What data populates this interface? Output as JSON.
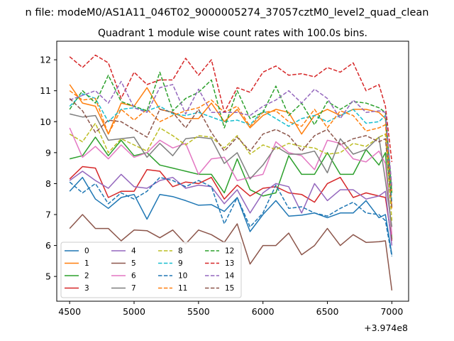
{
  "chart_data": {
    "type": "line",
    "suptitle": "n file: modeM0/AS1A11_046T02_9000005274_37057cztM0_level2_quad_clean",
    "title": "Quadrant 1 module wise count rates with 100.0s bins.",
    "xlabel": "",
    "ylabel": "",
    "x_offset_label": "+3.974e8",
    "xlim": [
      4400,
      7130
    ],
    "ylim": [
      4.2,
      12.6
    ],
    "x_ticks": [
      4500,
      5000,
      5500,
      6000,
      6500,
      7000
    ],
    "y_ticks": [
      5,
      6,
      7,
      8,
      9,
      10,
      11,
      12
    ],
    "grid": false,
    "legend": {
      "position": "lower-left",
      "columns": 4
    },
    "x": [
      4500,
      4600,
      4700,
      4800,
      4900,
      5000,
      5100,
      5200,
      5300,
      5400,
      5500,
      5600,
      5700,
      5800,
      5900,
      6000,
      6100,
      6200,
      6300,
      6400,
      6500,
      6600,
      6700,
      6800,
      6900,
      6950,
      7000
    ],
    "series": [
      {
        "name": "0",
        "color": "#1f77b4",
        "dash": "solid",
        "values": [
          7.75,
          8.2,
          7.5,
          7.2,
          7.55,
          7.65,
          6.85,
          7.65,
          7.58,
          7.45,
          7.3,
          7.32,
          7.1,
          7.55,
          6.45,
          7.0,
          7.45,
          6.95,
          6.98,
          7.05,
          6.9,
          7.05,
          7.05,
          7.45,
          6.9,
          7.0,
          5.7
        ]
      },
      {
        "name": "1",
        "color": "#ff7f0e",
        "dash": "solid",
        "values": [
          11.2,
          10.6,
          10.5,
          9.6,
          10.6,
          10.5,
          11.1,
          10.4,
          10.3,
          10.1,
          10.1,
          10.6,
          10.0,
          10.4,
          9.8,
          10.2,
          10.4,
          10.3,
          9.6,
          10.2,
          10.4,
          10.2,
          10.4,
          10.4,
          10.3,
          10.1,
          7.2
        ]
      },
      {
        "name": "2",
        "color": "#2ca02c",
        "dash": "solid",
        "values": [
          8.8,
          8.9,
          9.5,
          8.9,
          9.4,
          8.9,
          9.0,
          8.6,
          8.5,
          8.4,
          8.3,
          8.3,
          7.7,
          8.8,
          7.8,
          7.6,
          7.7,
          8.9,
          8.3,
          8.3,
          9.0,
          8.3,
          8.3,
          9.1,
          8.6,
          9.0,
          6.2
        ]
      },
      {
        "name": "3",
        "color": "#d62728",
        "dash": "solid",
        "values": [
          8.15,
          8.55,
          8.5,
          7.55,
          7.75,
          7.75,
          8.45,
          8.4,
          7.9,
          8.05,
          8.0,
          8.2,
          7.5,
          7.95,
          7.6,
          7.85,
          7.9,
          7.7,
          7.65,
          7.4,
          8.0,
          8.2,
          7.55,
          7.7,
          7.6,
          7.55,
          6.15
        ]
      },
      {
        "name": "4",
        "color": "#9467bd",
        "dash": "solid",
        "values": [
          8.1,
          8.4,
          8.1,
          7.85,
          8.3,
          7.9,
          7.85,
          8.1,
          8.2,
          7.85,
          7.95,
          7.9,
          7.35,
          7.8,
          7.05,
          7.7,
          8.0,
          7.9,
          7.05,
          8.0,
          7.45,
          7.8,
          7.8,
          7.5,
          7.6,
          7.75,
          6.0
        ]
      },
      {
        "name": "5",
        "color": "#8c564b",
        "dash": "solid",
        "values": [
          6.55,
          7.0,
          6.55,
          6.55,
          6.15,
          6.5,
          6.48,
          6.25,
          6.5,
          6.05,
          6.5,
          6.35,
          6.1,
          6.7,
          5.4,
          6.0,
          6.0,
          6.4,
          5.7,
          6.0,
          6.55,
          6.0,
          6.35,
          6.1,
          6.12,
          6.15,
          4.55
        ]
      },
      {
        "name": "6",
        "color": "#e377c2",
        "dash": "solid",
        "values": [
          9.8,
          8.85,
          9.2,
          8.8,
          9.25,
          8.85,
          9.0,
          9.4,
          9.15,
          9.3,
          8.3,
          8.8,
          8.85,
          8.1,
          8.2,
          8.3,
          9.35,
          9.0,
          8.9,
          8.45,
          9.4,
          9.3,
          8.8,
          8.7,
          9.05,
          8.65,
          6.35
        ]
      },
      {
        "name": "7",
        "color": "#7f7f7f",
        "dash": "solid",
        "values": [
          10.25,
          10.15,
          10.2,
          9.4,
          9.45,
          9.5,
          8.85,
          9.3,
          8.9,
          9.45,
          9.5,
          9.45,
          8.65,
          9.0,
          8.15,
          8.6,
          9.2,
          8.95,
          8.95,
          9.05,
          8.35,
          9.45,
          8.95,
          9.1,
          9.5,
          8.1,
          6.6
        ]
      },
      {
        "name": "8",
        "color": "#bcbd22",
        "dash": "dashed",
        "values": [
          9.6,
          9.35,
          9.95,
          9.0,
          9.45,
          9.25,
          9.05,
          9.8,
          9.55,
          9.25,
          9.55,
          9.5,
          9.15,
          9.55,
          8.95,
          9.25,
          9.1,
          9.3,
          9.2,
          9.15,
          8.95,
          9.0,
          9.3,
          9.2,
          9.5,
          9.6,
          6.8
        ]
      },
      {
        "name": "9",
        "color": "#17becf",
        "dash": "dashed",
        "values": [
          10.5,
          10.9,
          10.75,
          10.0,
          10.4,
          10.45,
          10.35,
          10.5,
          10.25,
          10.2,
          10.3,
          10.15,
          10.0,
          10.05,
          9.9,
          10.35,
          10.1,
          9.85,
          10.1,
          10.2,
          10.0,
          10.2,
          10.4,
          9.95,
          10.0,
          10.2,
          7.4
        ]
      },
      {
        "name": "10",
        "color": "#1f77b4",
        "dash": "dashed",
        "values": [
          8.05,
          7.7,
          8.0,
          7.35,
          7.7,
          7.5,
          7.75,
          8.2,
          8.1,
          7.9,
          8.1,
          7.9,
          6.7,
          7.55,
          6.6,
          7.05,
          7.95,
          7.2,
          7.25,
          7.05,
          6.95,
          7.2,
          7.4,
          7.05,
          7.0,
          6.8,
          5.65
        ]
      },
      {
        "name": "11",
        "color": "#ff7f0e",
        "dash": "dashed",
        "values": [
          11.0,
          10.7,
          10.75,
          9.6,
          10.4,
          10.05,
          10.4,
          10.0,
          10.2,
          10.35,
          10.45,
          10.7,
          10.3,
          10.5,
          9.85,
          10.3,
          10.35,
          10.0,
          9.85,
          10.4,
          9.8,
          10.35,
          10.2,
          9.7,
          9.8,
          9.9,
          7.75
        ]
      },
      {
        "name": "12",
        "color": "#2ca02c",
        "dash": "dashed",
        "values": [
          10.4,
          11.0,
          10.6,
          11.5,
          10.65,
          10.5,
          10.35,
          11.6,
          10.35,
          10.75,
          10.95,
          11.35,
          9.8,
          11.0,
          10.1,
          10.3,
          11.15,
          10.2,
          10.6,
          9.9,
          10.65,
          10.4,
          10.65,
          10.6,
          10.45,
          10.3,
          7.7
        ]
      },
      {
        "name": "13",
        "color": "#d62728",
        "dash": "dashed",
        "values": [
          12.1,
          11.75,
          12.15,
          11.9,
          10.75,
          11.6,
          11.2,
          11.35,
          11.35,
          12.05,
          11.5,
          12.0,
          10.3,
          11.1,
          10.95,
          11.6,
          11.8,
          11.5,
          11.55,
          11.45,
          11.75,
          11.6,
          11.9,
          11.0,
          11.2,
          10.5,
          8.7
        ]
      },
      {
        "name": "14",
        "color": "#9467bd",
        "dash": "dashed",
        "values": [
          10.7,
          10.85,
          11.0,
          10.6,
          11.3,
          10.45,
          10.3,
          11.1,
          11.2,
          10.25,
          11.05,
          10.3,
          10.3,
          10.3,
          10.2,
          10.5,
          10.7,
          11.0,
          10.6,
          11.05,
          10.75,
          10.1,
          10.7,
          10.3,
          10.35,
          10.3,
          7.9
        ]
      },
      {
        "name": "15",
        "color": "#8c564b",
        "dash": "dashed",
        "values": [
          10.75,
          10.35,
          9.65,
          10.05,
          10.0,
          9.75,
          9.5,
          10.4,
          10.3,
          9.8,
          10.4,
          9.65,
          9.05,
          9.5,
          9.05,
          9.6,
          9.75,
          9.55,
          9.05,
          9.55,
          9.75,
          9.25,
          9.45,
          9.55,
          9.35,
          9.45,
          7.25
        ]
      }
    ]
  }
}
